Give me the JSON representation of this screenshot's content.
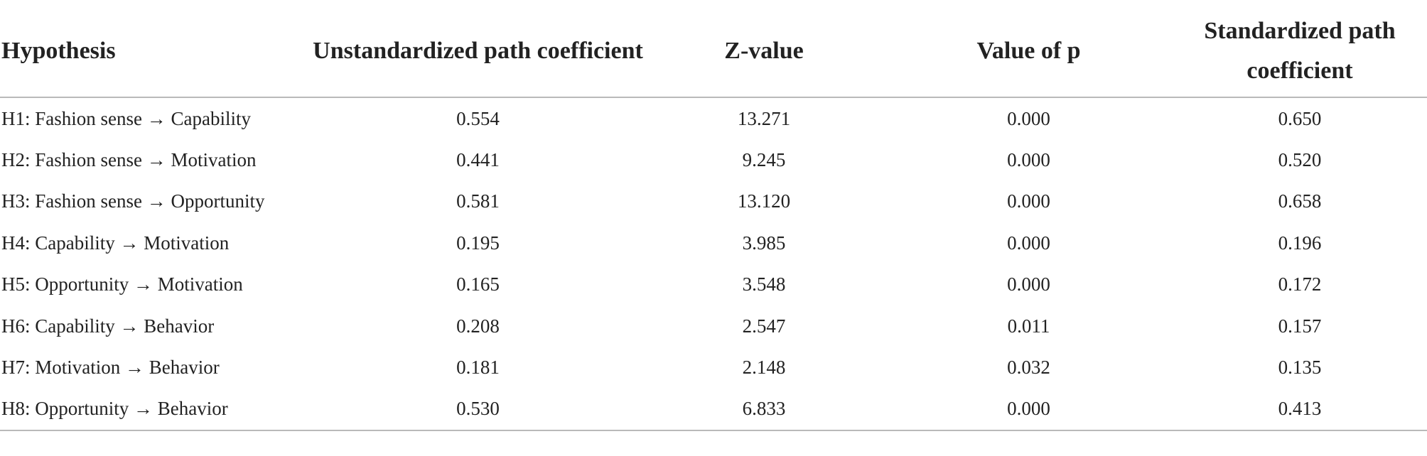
{
  "table": {
    "headers": [
      "Hypothesis",
      "Unstandardized path coefficient",
      "Z-value",
      "Value of p",
      "Standardized path coefficient"
    ],
    "rows": [
      [
        "H1: Fashion sense → Capability",
        "0.554",
        "13.271",
        "0.000",
        "0.650"
      ],
      [
        "H2: Fashion sense → Motivation",
        "0.441",
        "9.245",
        "0.000",
        "0.520"
      ],
      [
        "H3: Fashion sense → Opportunity",
        "0.581",
        "13.120",
        "0.000",
        "0.658"
      ],
      [
        "H4: Capability → Motivation",
        "0.195",
        "3.985",
        "0.000",
        "0.196"
      ],
      [
        "H5: Opportunity → Motivation",
        "0.165",
        "3.548",
        "0.000",
        "0.172"
      ],
      [
        "H6: Capability → Behavior",
        "0.208",
        "2.547",
        "0.011",
        "0.157"
      ],
      [
        "H7: Motivation → Behavior",
        "0.181",
        "2.148",
        "0.032",
        "0.135"
      ],
      [
        "H8: Opportunity → Behavior",
        "0.530",
        "6.833",
        "0.000",
        "0.413"
      ]
    ]
  }
}
